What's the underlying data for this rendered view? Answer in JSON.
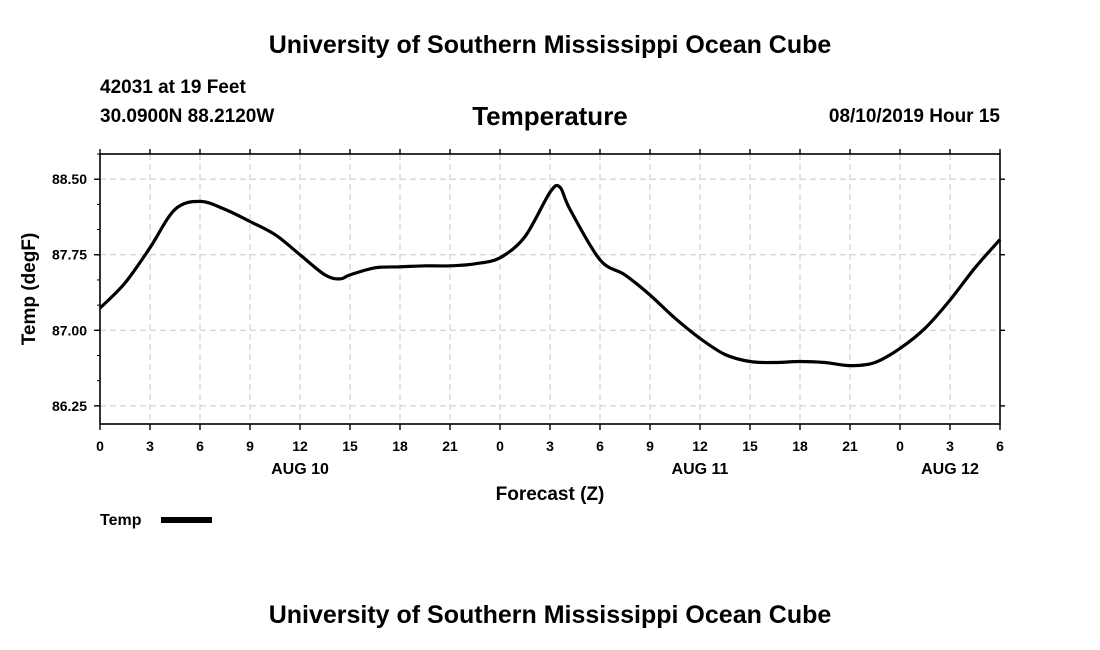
{
  "header": {
    "top_title": "University of Southern Mississippi Ocean Cube",
    "station": "42031 at 19 Feet",
    "coordinates": "30.0900N 88.2120W",
    "datetime": "08/10/2019 Hour 15",
    "bottom_title": "University of Southern Mississippi Ocean Cube"
  },
  "chart_data": {
    "type": "line",
    "title": "Temperature",
    "xlabel": "Forecast (Z)",
    "ylabel": "Temp (degF)",
    "x_unit": "hours from 00Z Aug 10",
    "xlim": [
      0,
      54
    ],
    "ylim": [
      86.07,
      88.75
    ],
    "y_ticks": [
      86.25,
      87.0,
      87.75,
      88.5
    ],
    "y_tick_labels": [
      "86.25",
      "87.00",
      "87.75",
      "88.50"
    ],
    "x_ticks": [
      0,
      3,
      6,
      9,
      12,
      15,
      18,
      21,
      24,
      27,
      30,
      33,
      36,
      39,
      42,
      45,
      48,
      51,
      54
    ],
    "x_tick_labels": [
      "0",
      "3",
      "6",
      "9",
      "12",
      "15",
      "18",
      "21",
      "0",
      "3",
      "6",
      "9",
      "12",
      "15",
      "18",
      "21",
      "0",
      "3",
      "6"
    ],
    "date_labels": [
      {
        "x": 12,
        "label": "AUG 10"
      },
      {
        "x": 36,
        "label": "AUG 11"
      },
      {
        "x": 51,
        "label": "AUG 12"
      }
    ],
    "grid": true,
    "series": [
      {
        "name": "Temp",
        "color": "#000000",
        "x": [
          0,
          1.5,
          3,
          4.5,
          6,
          7.5,
          9,
          10.5,
          12,
          13.5,
          14.4,
          15,
          16.5,
          18,
          19.5,
          21,
          22.5,
          24,
          25.5,
          27,
          27.6,
          28.2,
          30,
          31.5,
          33,
          34.5,
          36,
          37.5,
          39,
          40.5,
          42,
          43.5,
          45,
          46.5,
          48,
          49.5,
          51,
          52.5,
          54
        ],
        "y": [
          87.22,
          87.47,
          87.82,
          88.2,
          88.28,
          88.2,
          88.08,
          87.95,
          87.75,
          87.55,
          87.51,
          87.55,
          87.62,
          87.63,
          87.64,
          87.64,
          87.66,
          87.72,
          87.93,
          88.37,
          88.42,
          88.2,
          87.7,
          87.55,
          87.35,
          87.12,
          86.92,
          86.76,
          86.69,
          86.68,
          86.69,
          86.68,
          86.65,
          86.68,
          86.82,
          87.02,
          87.3,
          87.62,
          87.9
        ]
      }
    ],
    "legend": {
      "label": "Temp",
      "position": "bottom-left"
    }
  }
}
